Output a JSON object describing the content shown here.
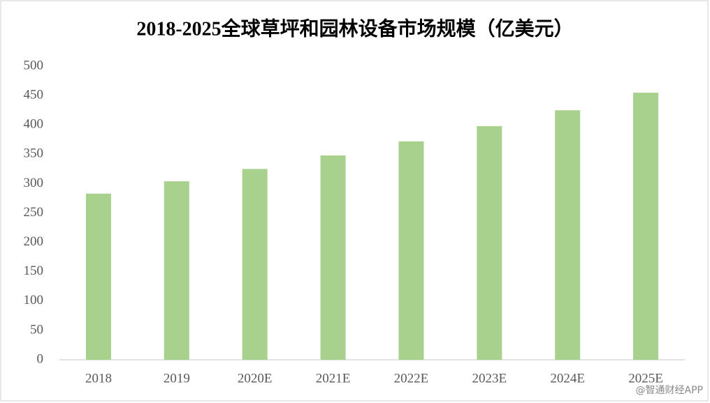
{
  "chart_data": {
    "type": "bar",
    "title": "2018-2025全球草坪和园林设备市场规模（亿美元）",
    "categories": [
      "2018",
      "2019",
      "2020E",
      "2021E",
      "2022E",
      "2023E",
      "2024E",
      "2025E"
    ],
    "values": [
      283,
      304,
      325,
      348,
      372,
      398,
      425,
      455
    ],
    "color": "#a9d18e",
    "ylim": [
      0,
      500
    ],
    "yticks": [
      0,
      50,
      100,
      150,
      200,
      250,
      300,
      350,
      400,
      450,
      500
    ],
    "grid": false
  },
  "watermark": "@智通财经APP"
}
